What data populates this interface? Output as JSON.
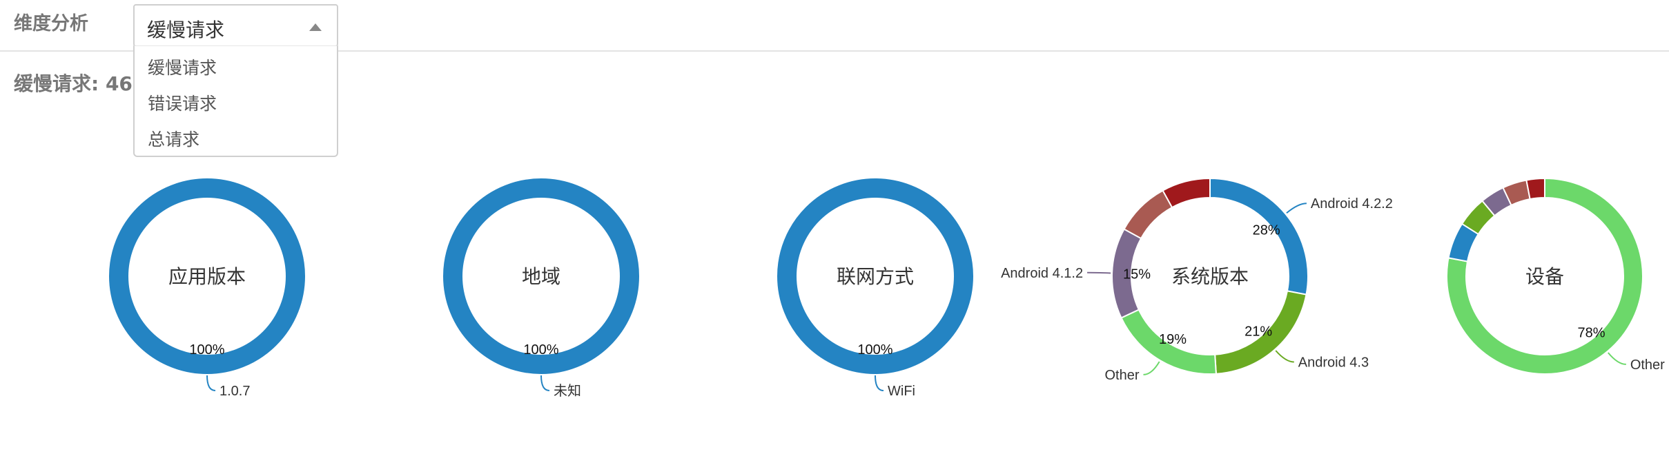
{
  "header": {
    "title": "维度分析",
    "select": {
      "value": "缓慢请求",
      "options": [
        "缓慢请求",
        "错误请求",
        "总请求"
      ]
    }
  },
  "subtitle": "缓慢请求: 466",
  "colors": {
    "blue": "#2484c3",
    "green": "#6cd86a",
    "olive_green": "#6aaa22",
    "purple": "#7c6a8f",
    "brown": "#a95a52",
    "dark_red": "#a0191c"
  },
  "chart_data": [
    {
      "type": "pie",
      "title": "应用版本",
      "slices": [
        {
          "label": "1.0.7",
          "value": 100,
          "pct_label": "100%",
          "color": "#2484c3",
          "show_label": true
        }
      ]
    },
    {
      "type": "pie",
      "title": "地域",
      "slices": [
        {
          "label": "未知",
          "value": 100,
          "pct_label": "100%",
          "color": "#2484c3",
          "show_label": true
        }
      ]
    },
    {
      "type": "pie",
      "title": "联网方式",
      "slices": [
        {
          "label": "WiFi",
          "value": 100,
          "pct_label": "100%",
          "color": "#2484c3",
          "show_label": true
        }
      ]
    },
    {
      "type": "pie",
      "title": "系统版本",
      "slices": [
        {
          "label": "Android 4.2.2",
          "value": 28,
          "pct_label": "28%",
          "color": "#2484c3",
          "show_label": true
        },
        {
          "label": "Android 4.3",
          "value": 21,
          "pct_label": "21%",
          "color": "#6aaa22",
          "show_label": true
        },
        {
          "label": "Other",
          "value": 19,
          "pct_label": "19%",
          "color": "#6cd86a",
          "show_label": true
        },
        {
          "label": "Android 4.1.2",
          "value": 15,
          "pct_label": "15%",
          "color": "#7c6a8f",
          "show_label": true
        },
        {
          "label": "",
          "value": 9,
          "pct_label": "",
          "color": "#a95a52",
          "show_label": false
        },
        {
          "label": "",
          "value": 8,
          "pct_label": "",
          "color": "#a0191c",
          "show_label": false
        }
      ]
    },
    {
      "type": "pie",
      "title": "设备",
      "slices": [
        {
          "label": "Other",
          "value": 78,
          "pct_label": "78%",
          "color": "#6cd86a",
          "show_label": true
        },
        {
          "label": "",
          "value": 6,
          "pct_label": "",
          "color": "#2484c3",
          "show_label": false
        },
        {
          "label": "",
          "value": 5,
          "pct_label": "",
          "color": "#6aaa22",
          "show_label": false
        },
        {
          "label": "",
          "value": 4,
          "pct_label": "",
          "color": "#7c6a8f",
          "show_label": false
        },
        {
          "label": "",
          "value": 4,
          "pct_label": "",
          "color": "#a95a52",
          "show_label": false
        },
        {
          "label": "",
          "value": 3,
          "pct_label": "",
          "color": "#a0191c",
          "show_label": false
        }
      ]
    }
  ]
}
